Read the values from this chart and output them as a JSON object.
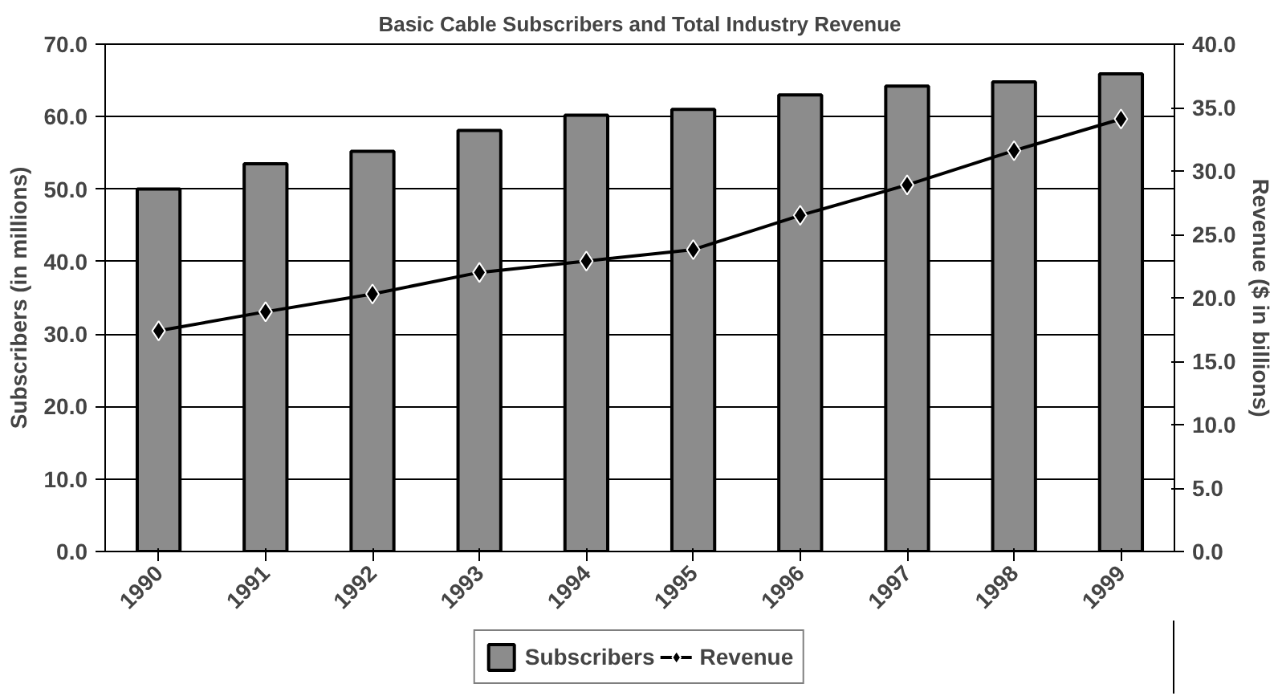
{
  "chart_data": {
    "type": "bar",
    "title": "Basic Cable Subscribers and Total Industry Revenue",
    "categories": [
      "1990",
      "1991",
      "1992",
      "1993",
      "1994",
      "1995",
      "1996",
      "1997",
      "1998",
      "1999"
    ],
    "ylabel": "Subscribers (in millions)",
    "y2label": "Revenue ($ in billions)",
    "series": [
      {
        "name": "Subscribers",
        "color": "#8c8c8c",
        "values": [
          50.0,
          53.5,
          55.2,
          58.1,
          60.2,
          61.0,
          63.0,
          64.2,
          64.8,
          65.9
        ]
      },
      {
        "name": "Revenue",
        "type": "line",
        "axis": "y2",
        "color": "#000000",
        "marker": "diamond",
        "values": [
          17.4,
          18.9,
          20.3,
          22.0,
          22.9,
          23.8,
          26.5,
          28.9,
          31.6,
          34.1
        ]
      }
    ],
    "ylim": [
      0,
      70
    ],
    "yticks": [
      {
        "value": 0,
        "label": "0.0"
      },
      {
        "value": 10,
        "label": "10.0"
      },
      {
        "value": 20,
        "label": "20.0"
      },
      {
        "value": 30,
        "label": "30.0"
      },
      {
        "value": 40,
        "label": "40.0"
      },
      {
        "value": 50,
        "label": "50.0"
      },
      {
        "value": 60,
        "label": "60.0"
      },
      {
        "value": 70,
        "label": "70.0"
      }
    ],
    "y2lim": [
      0,
      40
    ],
    "y2ticks": [
      {
        "value": 0,
        "label": "0.0"
      },
      {
        "value": 5,
        "label": "5.0"
      },
      {
        "value": 10,
        "label": "10.0"
      },
      {
        "value": 15,
        "label": "15.0"
      },
      {
        "value": 20,
        "label": "20.0"
      },
      {
        "value": 25,
        "label": "25.0"
      },
      {
        "value": 30,
        "label": "30.0"
      },
      {
        "value": 35,
        "label": "35.0"
      },
      {
        "value": 40,
        "label": "40.0"
      }
    ],
    "grid": "y",
    "legend": "bottom"
  }
}
